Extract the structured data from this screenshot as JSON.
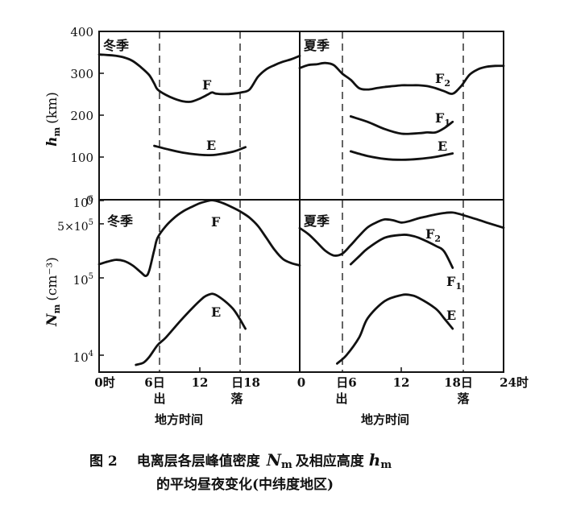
{
  "chart_data": {
    "type": "line",
    "top": {
      "ylabel_main": "h",
      "ylabel_sub": "m",
      "ylabel_unit": "(km)",
      "yticks": [
        "400",
        "300",
        "200",
        "100",
        "0"
      ],
      "ylim": [
        0,
        400
      ],
      "panels": [
        {
          "title": "冬季",
          "series": [
            {
              "name": "F",
              "x": [
                0,
                1,
                2,
                3,
                4,
                5,
                6,
                6.6,
                7,
                8,
                9,
                10,
                11,
                12,
                13,
                13.5,
                14,
                15,
                16,
                17,
                18,
                19,
                20,
                21,
                22,
                23,
                24
              ],
              "y": [
                345,
                344,
                342,
                338,
                330,
                315,
                296,
                276,
                262,
                249,
                240,
                234,
                233,
                240,
                250,
                255,
                252,
                251,
                252,
                255,
                262,
                292,
                310,
                320,
                328,
                334,
                342
              ]
            },
            {
              "name": "E",
              "x": [
                6.6,
                8,
                10,
                12,
                13,
                14,
                16,
                17.5
              ],
              "y": [
                128,
                121,
                112,
                107,
                106,
                107,
                114,
                125
              ]
            }
          ]
        },
        {
          "title": "夏季",
          "series": [
            {
              "name": "F",
              "label_sub": "2",
              "x": [
                0,
                1,
                2,
                3,
                4,
                5,
                6,
                7,
                8,
                9,
                10,
                11,
                12,
                13,
                14,
                15,
                16,
                17,
                18,
                19,
                20,
                21,
                22,
                23,
                24
              ],
              "y": [
                313,
                320,
                322,
                325,
                320,
                300,
                285,
                265,
                262,
                265,
                268,
                270,
                272,
                272,
                272,
                270,
                265,
                258,
                252,
                270,
                297,
                310,
                316,
                318,
                318
              ]
            },
            {
              "name": "F",
              "label_sub": "1",
              "x": [
                6,
                8,
                10,
                12,
                14,
                15,
                16,
                17,
                18
              ],
              "y": [
                198,
                185,
                168,
                157,
                158,
                160,
                160,
                170,
                185
              ]
            },
            {
              "name": "E",
              "x": [
                6,
                8,
                10,
                12,
                14,
                16,
                18
              ],
              "y": [
                115,
                104,
                97,
                95,
                97,
                102,
                110
              ]
            }
          ]
        }
      ]
    },
    "bottom": {
      "ylabel_main": "N",
      "ylabel_sub": "m",
      "ylabel_unit": "(cm⁻³)",
      "yticks": [
        {
          "base": "10",
          "exp": "6",
          "value": 1000000
        },
        {
          "base": "5×10",
          "exp": "5",
          "value": 500000
        },
        {
          "base": "10",
          "exp": "5",
          "value": 100000
        },
        {
          "base": "10",
          "exp": "4",
          "value": 10000
        }
      ],
      "panels": [
        {
          "title": "冬季",
          "series": [
            {
              "name": "F",
              "x": [
                0,
                1,
                2,
                3,
                4,
                5,
                5.6,
                6,
                6.6,
                7,
                8,
                9,
                10,
                11,
                12,
                13,
                13.5,
                14,
                15,
                16,
                17,
                18,
                19,
                20,
                21,
                22,
                23,
                24
              ],
              "y": [
                150000,
                162000,
                171000,
                165000,
                145000,
                118000,
                106000,
                125000,
                230000,
                330000,
                470000,
                600000,
                720000,
                820000,
                920000,
                990000,
                1010000,
                990000,
                910000,
                810000,
                710000,
                600000,
                470000,
                330000,
                230000,
                175000,
                155000,
                145000
              ]
            },
            {
              "name": "E",
              "x": [
                4.4,
                5.3,
                6,
                7,
                8,
                10,
                12,
                13,
                14,
                16,
                17.5
              ],
              "y": [
                7500,
                8000,
                9500,
                13500,
                17000,
                30000,
                50000,
                60000,
                60000,
                40000,
                22000
              ]
            }
          ]
        },
        {
          "title": "夏季",
          "series": [
            {
              "name": "F",
              "label_sub": "2",
              "x": [
                0,
                1,
                2,
                3,
                4,
                5,
                6,
                7,
                8,
                9,
                10,
                11,
                12,
                13,
                14,
                15,
                16,
                17,
                18,
                19,
                20,
                21,
                22,
                23,
                24
              ],
              "y": [
                440000,
                370000,
                290000,
                225000,
                195000,
                205000,
                265000,
                350000,
                450000,
                520000,
                570000,
                555000,
                520000,
                545000,
                590000,
                625000,
                660000,
                690000,
                700000,
                660000,
                610000,
                565000,
                520000,
                480000,
                445000
              ]
            },
            {
              "name": "F",
              "label_sub": "1",
              "x": [
                6,
                7,
                8,
                10,
                12,
                13,
                14,
                16,
                17,
                18
              ],
              "y": [
                150000,
                190000,
                240000,
                330000,
                360000,
                355000,
                330000,
                260000,
                220000,
                135000
              ]
            },
            {
              "name": "E",
              "x": [
                4.4,
                5.5,
                7,
                8,
                10,
                12,
                13,
                14,
                16,
                17,
                18
              ],
              "y": [
                7800,
                10000,
                17000,
                30000,
                50000,
                60000,
                60000,
                55000,
                40000,
                30000,
                22000
              ]
            }
          ]
        }
      ]
    },
    "x_axis": {
      "ticks_left": [
        "0时",
        "6日",
        "12",
        "日18"
      ],
      "ticks_right": [
        "0",
        "日6",
        "12",
        "18日",
        "24时"
      ],
      "sub_left": [
        "出",
        "落"
      ],
      "sub_right": [
        "出",
        "落"
      ],
      "xlabel": "地方时间"
    },
    "caption": {
      "line1_prefix": "图 2",
      "line1_text": "电离层各层峰值密度",
      "nm_main": "N",
      "nm_sub": "m",
      "line1_mid": "及相应高度",
      "hm_main": "h",
      "hm_sub": "m",
      "line2": "的平均昼夜变化(中纬度地区)"
    }
  }
}
